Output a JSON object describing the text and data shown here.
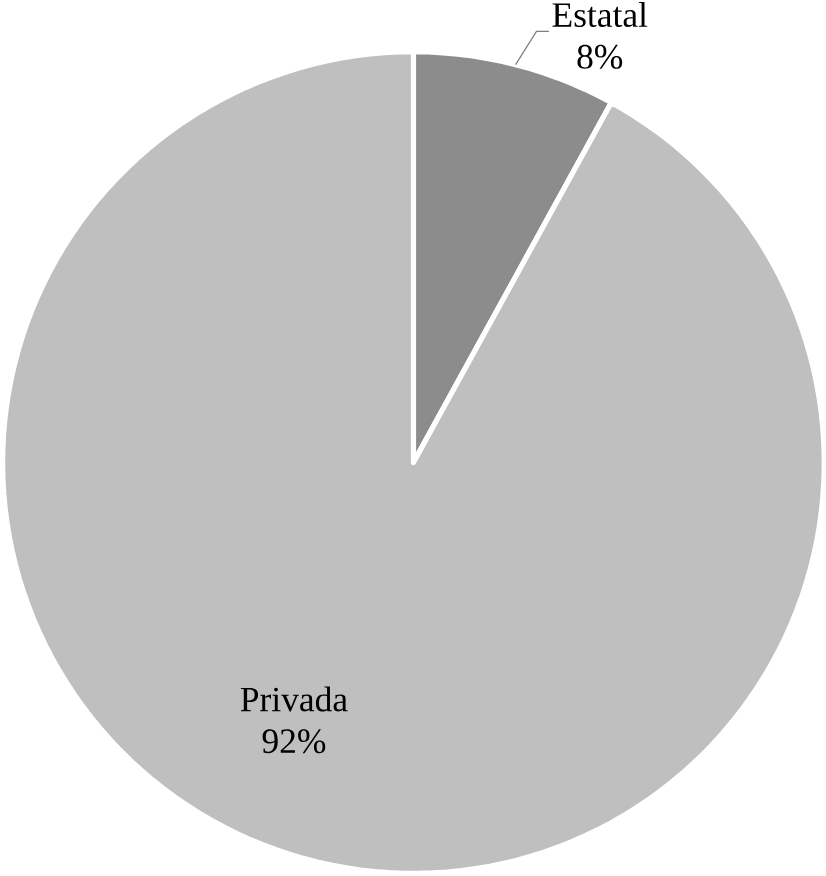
{
  "chart_data": {
    "type": "pie",
    "categories": [
      "Estatal",
      "Privada"
    ],
    "values": [
      8,
      92
    ],
    "value_labels": [
      "8%",
      "92%"
    ],
    "colors": [
      "#8c8c8c",
      "#bfbfbf"
    ]
  }
}
